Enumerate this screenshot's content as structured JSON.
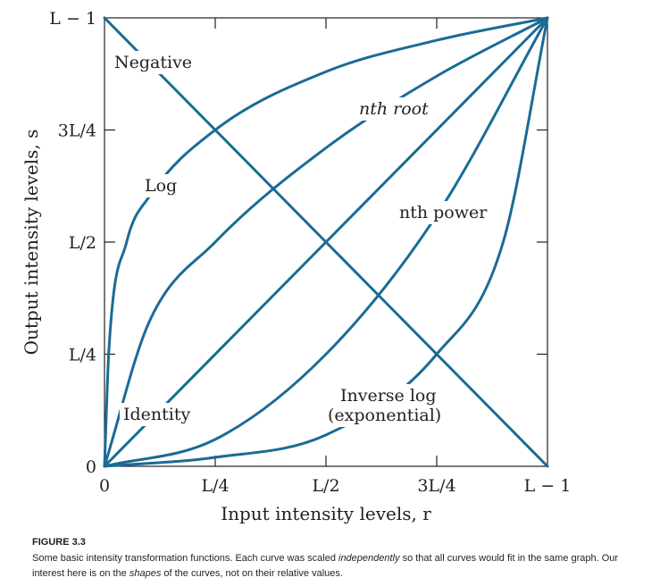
{
  "chart_data": {
    "type": "line",
    "xlabel": "Input intensity levels, r",
    "ylabel": "Output intensity levels, s",
    "xlim": [
      0,
      1
    ],
    "ylim": [
      0,
      1
    ],
    "grid": false,
    "x_ticks": [
      {
        "value": 0,
        "label": "0"
      },
      {
        "value": 0.25,
        "label": "L/4"
      },
      {
        "value": 0.5,
        "label": "L/2"
      },
      {
        "value": 0.75,
        "label": "3L/4"
      },
      {
        "value": 1,
        "label": "L − 1"
      }
    ],
    "y_ticks": [
      {
        "value": 0,
        "label": "0"
      },
      {
        "value": 0.25,
        "label": "L/4"
      },
      {
        "value": 0.5,
        "label": "L/2"
      },
      {
        "value": 0.75,
        "label": "3L/4"
      },
      {
        "value": 1,
        "label": "L − 1"
      }
    ],
    "series": [
      {
        "name": "Negative",
        "x": [
          0,
          0.25,
          0.5,
          0.75,
          1
        ],
        "y": [
          1,
          0.75,
          0.5,
          0.25,
          0
        ]
      },
      {
        "name": "Log",
        "x": [
          0,
          0.01,
          0.05,
          0.1,
          0.25,
          0.5,
          0.75,
          1
        ],
        "y": [
          0,
          0.26,
          0.5,
          0.6,
          0.75,
          0.88,
          0.95,
          1
        ]
      },
      {
        "name": "nth root",
        "x": [
          0,
          0.1,
          0.25,
          0.5,
          0.75,
          1
        ],
        "y": [
          0,
          0.32,
          0.5,
          0.71,
          0.87,
          1
        ]
      },
      {
        "name": "Identity",
        "x": [
          0,
          1
        ],
        "y": [
          0,
          1
        ]
      },
      {
        "name": "nth power",
        "x": [
          0,
          0.25,
          0.5,
          0.75,
          1
        ],
        "y": [
          0,
          0.06,
          0.25,
          0.56,
          1
        ]
      },
      {
        "name": "Inverse log (exponential)",
        "x": [
          0,
          0.25,
          0.5,
          0.75,
          0.9,
          1
        ],
        "y": [
          0,
          0.02,
          0.07,
          0.25,
          0.5,
          1
        ]
      }
    ],
    "annotations": {
      "negative": "Negative",
      "log": "Log",
      "nth_root": "nth root",
      "identity": "Identity",
      "nth_power": "nth power",
      "inverse_log_1": "Inverse log",
      "inverse_log_2": "(exponential)"
    },
    "color": "#1a6b96"
  },
  "caption": {
    "title": "FIGURE 3.3",
    "text_1": "Some basic intensity transformation functions. Each curve was scaled ",
    "text_2": "independently",
    "text_3": " so that all curves would fit in the same graph. Our interest here is on the ",
    "text_4": "shapes",
    "text_5": " of the curves, not on their relative values."
  }
}
